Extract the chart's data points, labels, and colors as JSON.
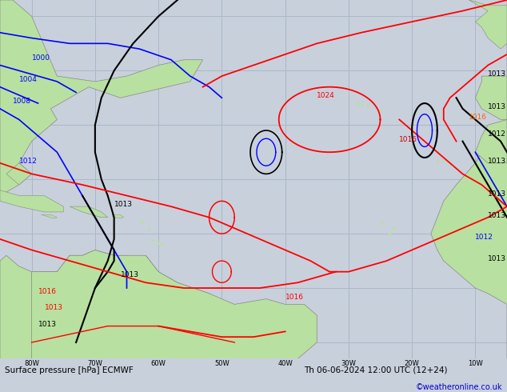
{
  "title_bottom_left": "Surface pressure [hPa] ECMWF",
  "title_bottom_right": "Th 06-06-2024 12:00 UTC (12+24)",
  "credit": "©weatheronline.co.uk",
  "background_color": "#c8d0dc",
  "land_color": "#b8e0a0",
  "ocean_color": "#c8d0dc",
  "grid_color": "#aab8c8",
  "fig_width": 6.34,
  "fig_height": 4.9,
  "dpi": 100,
  "bottom_bar_color": "#f0f0f0",
  "bottom_text_color": "#000000",
  "credit_color": "#0000cc",
  "lon_min": -85,
  "lon_max": -5,
  "lat_min": -8,
  "lat_max": 58
}
